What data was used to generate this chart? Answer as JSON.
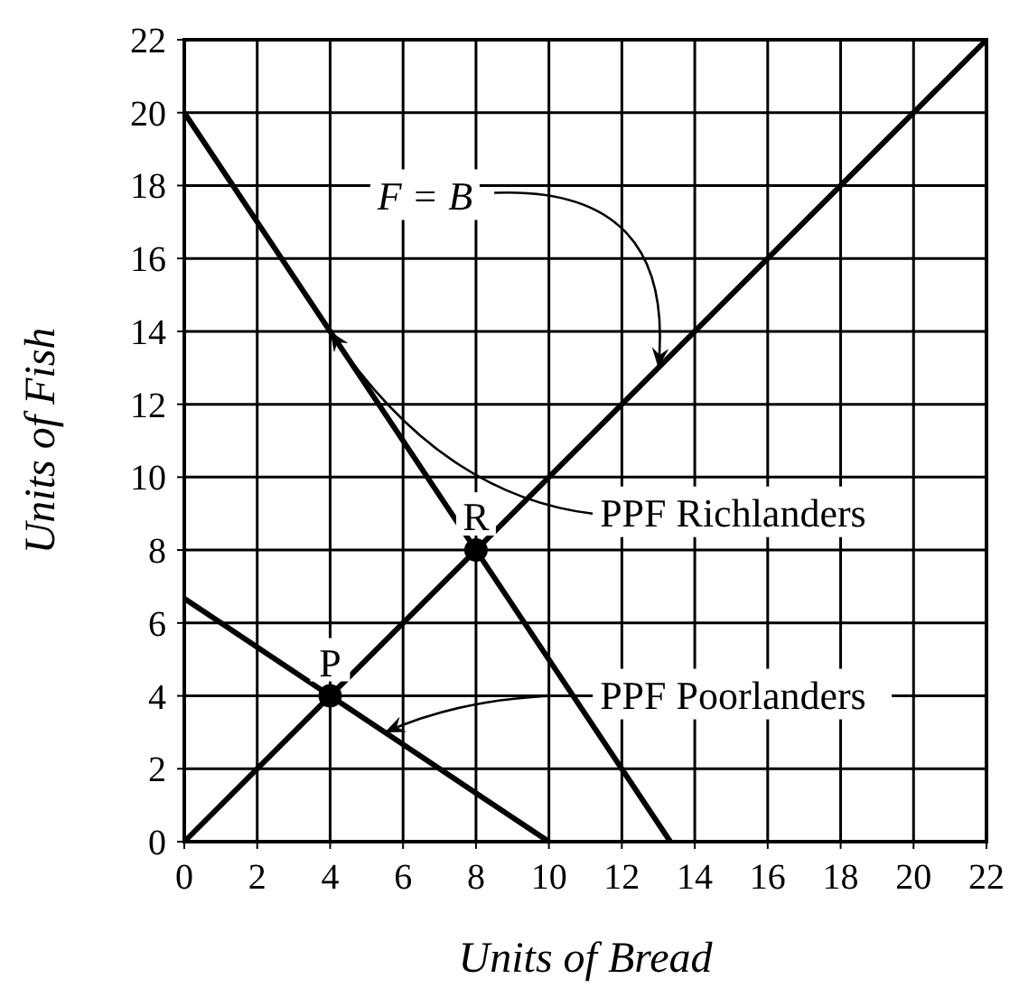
{
  "chart_data": {
    "type": "line",
    "xlabel": "Units of Bread",
    "ylabel": "Units of Fish",
    "xlim": [
      0,
      22
    ],
    "ylim": [
      0,
      22
    ],
    "xticks": [
      0,
      2,
      4,
      6,
      8,
      10,
      12,
      14,
      16,
      18,
      20,
      22
    ],
    "yticks": [
      0,
      2,
      4,
      6,
      8,
      10,
      12,
      14,
      16,
      18,
      20,
      22
    ],
    "grid": true,
    "marker": "none",
    "line_style": "solid",
    "series": [
      {
        "color": "#000000",
        "x": [
          0,
          22
        ],
        "values": [
          0,
          22
        ]
      },
      {
        "color": "#000000",
        "x": [
          0,
          13.33
        ],
        "values": [
          20,
          0
        ]
      },
      {
        "color": "#000000",
        "x": [
          0,
          10
        ],
        "values": [
          6.67,
          0
        ]
      },
      {
        "type": "scatter",
        "color": "#000000",
        "marker": "circle",
        "x": [
          4,
          8
        ],
        "values": [
          4,
          8
        ]
      }
    ],
    "annotations": [
      {
        "text": "P",
        "x": 4,
        "y": 4
      },
      {
        "text": "R",
        "x": 8,
        "y": 8
      },
      {
        "text": "F = B",
        "x": 13,
        "y": 13
      },
      {
        "text": "PPF Richlanders",
        "x": 4,
        "y": 14
      },
      {
        "text": "PPF Poorlanders",
        "x": 5.5,
        "y": 3
      }
    ]
  }
}
